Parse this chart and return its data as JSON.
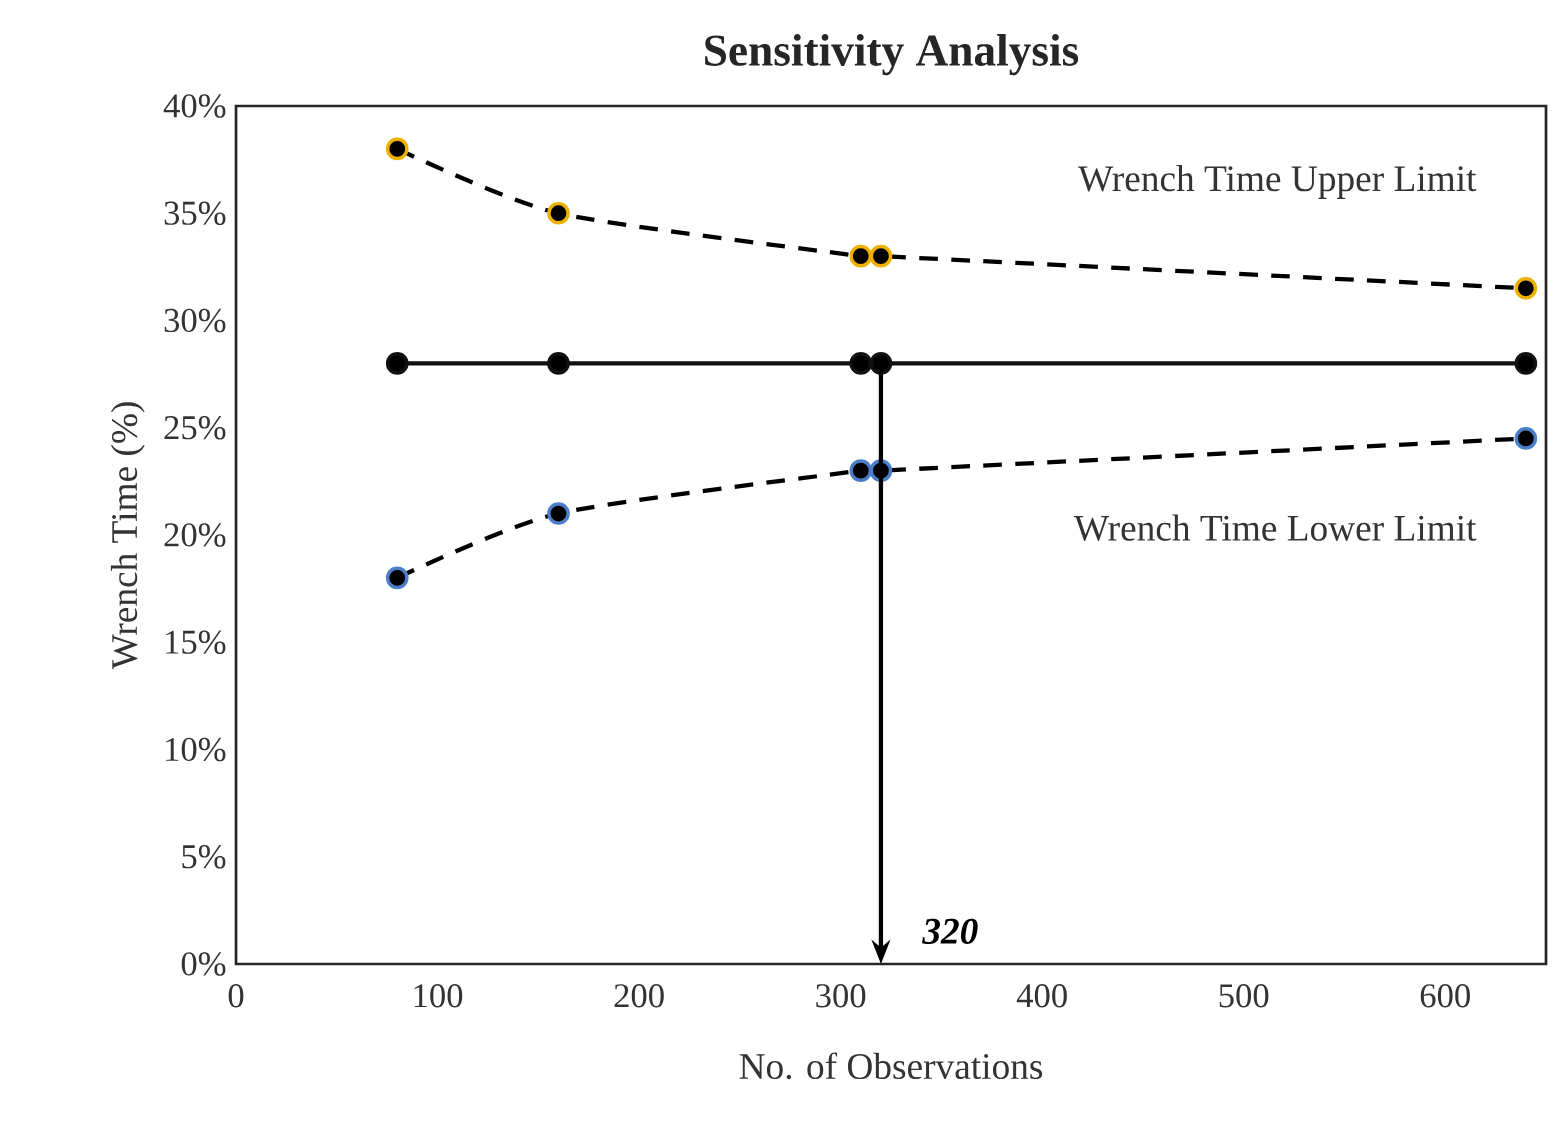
{
  "chart_data": {
    "type": "line",
    "title": "Sensitivity Analysis",
    "xlabel": "No. of Observations",
    "ylabel": "Wrench Time (%)",
    "series": [
      {
        "name": "Wrench Time Upper Limit",
        "color": "#f0b000",
        "line_style": "dashed",
        "x": [
          80,
          160,
          310,
          320,
          640
        ],
        "values": [
          38,
          35,
          33,
          33,
          31.5
        ]
      },
      {
        "color": "#111111",
        "line_style": "solid",
        "x": [
          80,
          160,
          310,
          320,
          640
        ],
        "values": [
          28,
          28,
          28,
          28,
          28
        ]
      },
      {
        "name": "Wrench Time Lower Limit",
        "color": "#4a7ec8",
        "line_style": "dashed",
        "x": [
          80,
          160,
          310,
          320,
          640
        ],
        "values": [
          18,
          21,
          23,
          23,
          24.5
        ]
      }
    ],
    "marker": "circle",
    "grid": false,
    "legend": false,
    "ref_lines": [
      {
        "axis": "x",
        "value": 320,
        "label": "320"
      }
    ],
    "xlim": [
      0,
      650
    ],
    "xticks": [
      0,
      100,
      200,
      300,
      400,
      500,
      600
    ],
    "ylim": [
      0,
      40
    ],
    "yticks": [
      {
        "value": 0,
        "label": "0%"
      },
      {
        "value": 5,
        "label": "5%"
      },
      {
        "value": 10,
        "label": "10%"
      },
      {
        "value": 15,
        "label": "15%"
      },
      {
        "value": 20,
        "label": "20%"
      },
      {
        "value": 25,
        "label": "25%"
      },
      {
        "value": 30,
        "label": "30%"
      },
      {
        "value": 35,
        "label": "35%"
      },
      {
        "value": 40,
        "label": "40%"
      }
    ]
  }
}
